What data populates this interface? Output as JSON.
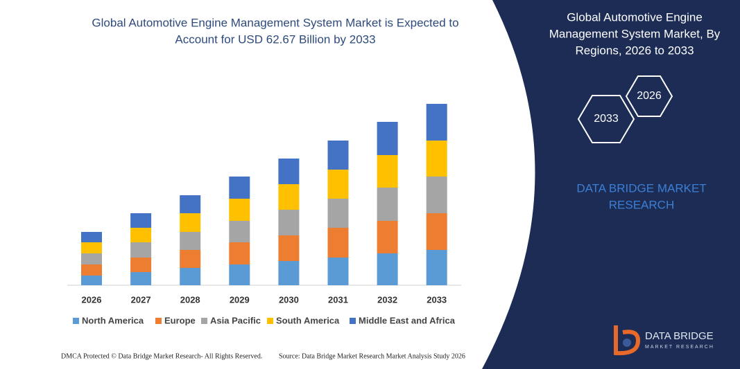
{
  "chart_data": {
    "type": "stacked_bar",
    "title": [
      "Global Automotive Engine Management System Market is Expected to",
      "Account for USD 62.67 Billion by 2033"
    ],
    "categories": [
      "2026",
      "2027",
      "2028",
      "2029",
      "2030",
      "2031",
      "2032",
      "2033"
    ],
    "series": [
      {
        "name": "North America",
        "color": "#5b9bd5",
        "values": [
          14,
          19,
          25,
          30,
          35,
          40,
          46,
          51
        ]
      },
      {
        "name": "Europe",
        "color": "#ed7d31",
        "values": [
          16,
          21,
          26,
          32,
          37,
          43,
          47,
          53
        ]
      },
      {
        "name": "Asia Pacific",
        "color": "#a5a5a5",
        "values": [
          16,
          22,
          26,
          31,
          37,
          42,
          48,
          53
        ]
      },
      {
        "name": "South America",
        "color": "#ffc000",
        "values": [
          16,
          21,
          27,
          32,
          37,
          42,
          47,
          52
        ]
      },
      {
        "name": "Middle East and Africa",
        "color": "#4472c4",
        "values": [
          15,
          21,
          26,
          32,
          37,
          42,
          48,
          53
        ]
      }
    ]
  },
  "panel": {
    "title": [
      "Global Automotive Engine",
      "Management System Market, By",
      "Regions, 2026 to 2033"
    ],
    "hex_start": "2026",
    "hex_end": "2033",
    "brand": [
      "DATA BRIDGE MARKET",
      "RESEARCH"
    ]
  },
  "logo": {
    "name": "DATA BRIDGE",
    "tagline": "MARKET RESEARCH"
  },
  "footer": {
    "left": "DMCA Protected © Data Bridge Market Research- All Rights Reserved.",
    "right": "Source: Data Bridge Market Research Market Analysis Study 2026"
  }
}
